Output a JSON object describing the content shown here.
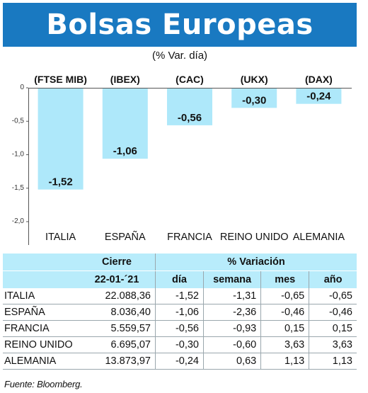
{
  "header": {
    "title": "Bolsas Europeas",
    "subtitle": "(% Var. día)"
  },
  "chart_data": {
    "type": "bar",
    "index_labels": [
      "(FTSE MIB)",
      "(IBEX)",
      "(CAC)",
      "(UKX)",
      "(DAX)"
    ],
    "categories": [
      "ITALIA",
      "ESPAÑA",
      "FRANCIA",
      "REINO UNIDO",
      "ALEMANIA"
    ],
    "values": [
      -1.52,
      -1.06,
      -0.56,
      -0.3,
      -0.24
    ],
    "value_labels": [
      "-1,52",
      "-1,06",
      "-0,56",
      "-0,30",
      "-0,24"
    ],
    "ylim": [
      -2.0,
      0
    ],
    "yticks": [
      0,
      -0.5,
      -1.0,
      -1.5,
      -2.0
    ],
    "ytick_labels": [
      "0",
      "-0,5",
      "-1,0",
      "-1,5",
      "-2,0"
    ],
    "bar_color": "#aee8fa"
  },
  "table": {
    "header_cierre": "Cierre",
    "header_variacion": "% Variación",
    "date": "22-01-´21",
    "col_dia": "día",
    "col_semana": "semana",
    "col_mes": "mes",
    "col_ano": "año",
    "rows": [
      {
        "name": "ITALIA",
        "cierre": "22.088,36",
        "dia": "-1,52",
        "semana": "-1,31",
        "mes": "-0,65",
        "ano": "-0,65"
      },
      {
        "name": "ESPAÑA",
        "cierre": "8.036,40",
        "dia": "-1,06",
        "semana": "-2,36",
        "mes": "-0,46",
        "ano": "-0,46"
      },
      {
        "name": "FRANCIA",
        "cierre": "5.559,57",
        "dia": "-0,56",
        "semana": "-0,93",
        "mes": "0,15",
        "ano": "0,15"
      },
      {
        "name": "REINO UNIDO",
        "cierre": "6.695,07",
        "dia": "-0,30",
        "semana": "-0,60",
        "mes": "3,63",
        "ano": "3,63"
      },
      {
        "name": "ALEMANIA",
        "cierre": "13.873,97",
        "dia": "-0,24",
        "semana": "0,63",
        "mes": "1,13",
        "ano": "1,13"
      }
    ],
    "header_bg": "#b8ecfb"
  },
  "source": "Fuente: Bloomberg."
}
